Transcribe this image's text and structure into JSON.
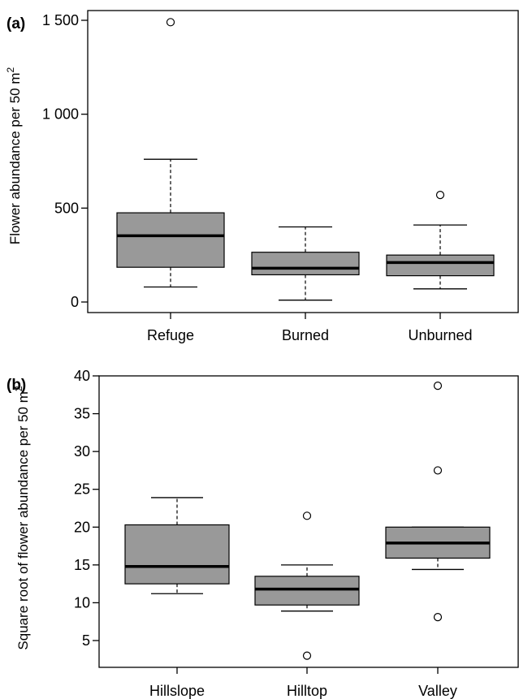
{
  "chart_data": [
    {
      "type": "box",
      "panel_label": "(a)",
      "ylabel": "Flower abundance per 50 m",
      "ylabel_superscript": "2",
      "ylim": [
        0,
        1500
      ],
      "yticks": [
        0,
        500,
        1000,
        1500
      ],
      "ytick_labels": [
        "0",
        "500",
        "1 000",
        "1 500"
      ],
      "categories": [
        "Refuge",
        "Burned",
        "Unburned"
      ],
      "box_color": "#999999",
      "boxes": [
        {
          "lower_whisker": 80,
          "q1": 185,
          "median": 353,
          "q3": 475,
          "upper_whisker": 760,
          "outliers": [
            1490
          ]
        },
        {
          "lower_whisker": 10,
          "q1": 145,
          "median": 180,
          "q3": 265,
          "upper_whisker": 400,
          "outliers": []
        },
        {
          "lower_whisker": 70,
          "q1": 140,
          "median": 210,
          "q3": 250,
          "upper_whisker": 410,
          "outliers": [
            570
          ]
        }
      ]
    },
    {
      "type": "box",
      "panel_label": "(b)",
      "ylabel": "Square root of flower abundance per 50 m",
      "ylabel_superscript": "2",
      "ylim": [
        2.5,
        40
      ],
      "yticks": [
        5,
        10,
        15,
        20,
        25,
        30,
        35,
        40
      ],
      "ytick_labels": [
        "5",
        "10",
        "15",
        "20",
        "25",
        "30",
        "35",
        "40"
      ],
      "categories": [
        "Hillslope",
        "Hilltop",
        "Valley"
      ],
      "box_color": "#999999",
      "boxes": [
        {
          "lower_whisker": 11.2,
          "q1": 12.5,
          "median": 14.8,
          "q3": 20.3,
          "upper_whisker": 23.9,
          "outliers": []
        },
        {
          "lower_whisker": 8.9,
          "q1": 9.7,
          "median": 11.8,
          "q3": 13.5,
          "upper_whisker": 15.0,
          "outliers": [
            21.5,
            3.0
          ]
        },
        {
          "lower_whisker": 14.4,
          "q1": 15.9,
          "median": 17.9,
          "q3": 20.0,
          "upper_whisker": 20.0,
          "outliers": [
            38.7,
            27.5,
            8.1
          ]
        }
      ]
    }
  ]
}
